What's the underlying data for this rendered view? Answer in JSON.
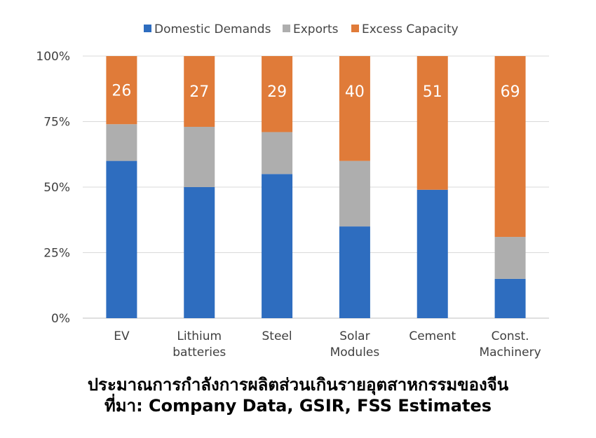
{
  "chart_data": {
    "type": "bar",
    "stacked": true,
    "categories": [
      "EV",
      [
        "Lithium",
        "batteries"
      ],
      "Steel",
      [
        "Solar",
        "Modules"
      ],
      "Cement",
      [
        "Const.",
        "Machinery"
      ]
    ],
    "series": [
      {
        "name": "Domestic Demands",
        "color": "#2E6DBF",
        "values": [
          60,
          50,
          55,
          35,
          49,
          15
        ]
      },
      {
        "name": "Exports",
        "color": "#AEAEAE",
        "values": [
          14,
          23,
          16,
          25,
          0,
          16
        ]
      },
      {
        "name": "Excess Capacity",
        "color": "#E07B39",
        "values": [
          26,
          27,
          29,
          40,
          51,
          69
        ]
      }
    ],
    "data_labels": [
      "26",
      "27",
      "29",
      "40",
      "51",
      "69"
    ],
    "y_ticks": [
      "0%",
      "25%",
      "50%",
      "75%",
      "100%"
    ],
    "ylim": [
      0,
      100
    ],
    "legend": "top",
    "grid": true
  },
  "caption": {
    "line1": "ประมาณการกำลังการผลิตส่วนเกินรายอุตสาหกรรมของจีน",
    "line2": "ที่มา: Company Data, GSIR, FSS Estimates"
  }
}
